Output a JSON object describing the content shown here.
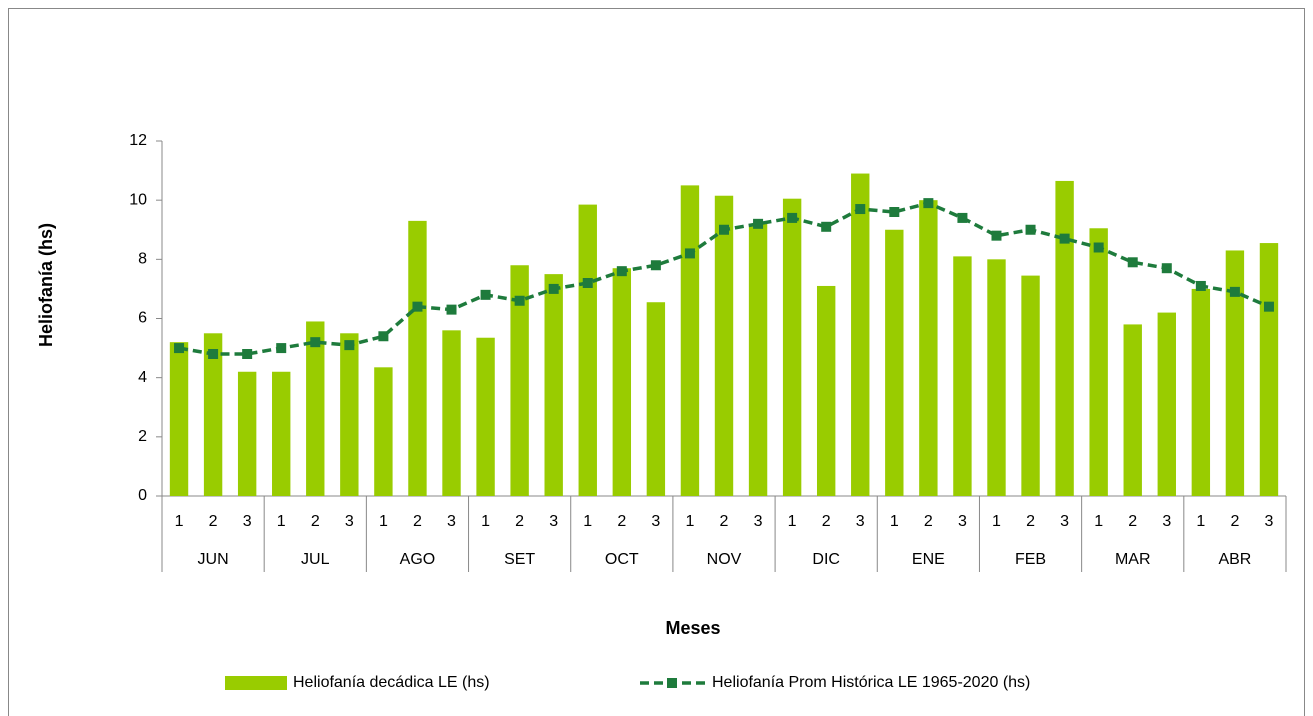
{
  "chart_data": {
    "type": "bar_line",
    "x_label": "Meses",
    "y_label": "Heliofanía (hs)",
    "categories": [
      "1",
      "2",
      "3",
      "1",
      "2",
      "3",
      "1",
      "2",
      "3",
      "1",
      "2",
      "3",
      "1",
      "2",
      "3",
      "1",
      "2",
      "3",
      "1",
      "2",
      "3",
      "1",
      "2",
      "3",
      "1",
      "2",
      "3",
      "1",
      "2",
      "3",
      "1",
      "2",
      "3"
    ],
    "category_groups": [
      "JUN",
      "JUL",
      "AGO",
      "SET",
      "OCT",
      "NOV",
      "DIC",
      "ENE",
      "FEB",
      "MAR",
      "ABR"
    ],
    "ylim": [
      0,
      12
    ],
    "yticks": [
      0,
      2,
      4,
      6,
      8,
      10,
      12
    ],
    "series": [
      {
        "name": "Heliofanía decádica LE (hs)",
        "type": "bar",
        "color": "#99cc00",
        "values": [
          5.2,
          5.5,
          4.2,
          4.2,
          5.9,
          5.5,
          4.35,
          9.3,
          5.6,
          5.35,
          7.8,
          7.5,
          9.85,
          7.7,
          6.55,
          10.5,
          10.15,
          9.2,
          10.05,
          7.1,
          10.9,
          9.0,
          10.0,
          8.1,
          8.0,
          7.45,
          10.65,
          9.05,
          5.8,
          6.2,
          7.0,
          8.3,
          8.55
        ]
      },
      {
        "name": "Heliofanía Prom Histórica LE 1965-2020 (hs)",
        "type": "line",
        "color": "#1e7b3c",
        "values": [
          5.0,
          4.8,
          4.8,
          5.0,
          5.2,
          5.1,
          5.4,
          6.4,
          6.3,
          6.8,
          6.6,
          7.0,
          7.2,
          7.6,
          7.8,
          8.2,
          9.0,
          9.2,
          9.4,
          9.1,
          9.7,
          9.6,
          9.9,
          9.4,
          8.8,
          9.0,
          8.7,
          8.4,
          7.9,
          7.7,
          7.1,
          6.9,
          6.4
        ]
      }
    ]
  }
}
